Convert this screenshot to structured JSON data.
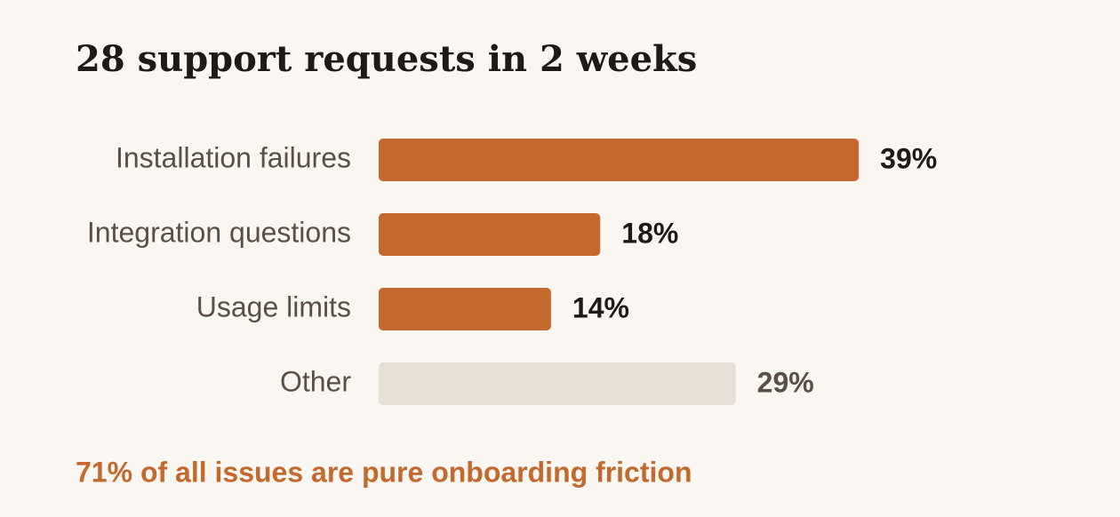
{
  "chart_data": {
    "type": "bar",
    "orientation": "horizontal",
    "title": "28 support requests in 2 weeks",
    "categories": [
      "Installation failures",
      "Integration questions",
      "Usage limits",
      "Other"
    ],
    "values": [
      39,
      18,
      14,
      29
    ],
    "value_labels": [
      "39%",
      "18%",
      "14%",
      "29%"
    ],
    "colors": [
      "#c4692e",
      "#c4692e",
      "#c4692e",
      "#e8dfd4"
    ],
    "value_label_colors": [
      "#1f1a17",
      "#1f1a17",
      "#1f1a17",
      "#5a4f45"
    ],
    "annotation": "71% of all issues are pure onboarding friction"
  }
}
